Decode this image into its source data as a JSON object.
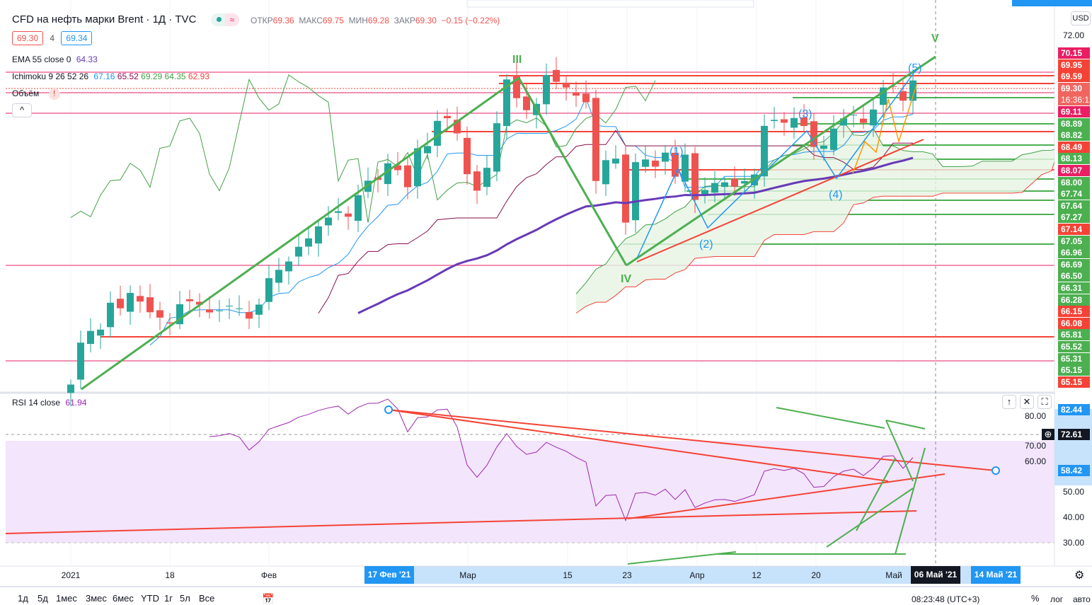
{
  "header": {
    "title": "CFD на нефть марки Brent · 1Д · TVC",
    "open_label": "ОТКР",
    "open": "69.36",
    "high_label": "МАКС",
    "high": "69.75",
    "low_label": "МИН",
    "low": "69.28",
    "close_label": "ЗАКР",
    "close": "69.30",
    "change": "−0.15 (−0.22%)",
    "bid": "69.30",
    "spread": "4",
    "ask": "69.34",
    "status_icon": "≈"
  },
  "indicators": {
    "ema_label": "EMA 55 close 0",
    "ema_value": "64.33",
    "ichimoku_label": "Ichimoku 9 26 52 26",
    "ichi_values": [
      "67.16",
      "65.52",
      "69.29",
      "64.35",
      "62.93"
    ],
    "volume_label": "Объём",
    "volume_warning": "!",
    "collapse": "^"
  },
  "rsi": {
    "label": "RSI 14 close",
    "value": "61.94",
    "ticks": [
      "80.00",
      "70.00",
      "60.00",
      "50.00",
      "40.00",
      "30.00"
    ],
    "labels": [
      {
        "value": "82.44",
        "color": "#2196f3"
      },
      {
        "value": "72.61",
        "color": "#131722"
      },
      {
        "value": "58.42",
        "color": "#2196f3"
      }
    ],
    "buttons": [
      "↑",
      "✕",
      "⛶"
    ]
  },
  "price_axis": {
    "currency": "USD",
    "top_tick": "72.00",
    "countdown": "16:36:1",
    "labels": [
      {
        "value": "70.15",
        "color": "#e91e63"
      },
      {
        "value": "69.95",
        "color": "#f44336"
      },
      {
        "value": "69.59",
        "color": "#f44336"
      },
      {
        "value": "69.30",
        "color": "#f0665f"
      },
      {
        "value": "69.11",
        "color": "#e91e63"
      },
      {
        "value": "68.89",
        "color": "#4caf50"
      },
      {
        "value": "68.82",
        "color": "#4caf50"
      },
      {
        "value": "68.49",
        "color": "#f44336"
      },
      {
        "value": "68.13",
        "color": "#4caf50"
      },
      {
        "value": "68.07",
        "color": "#e91e63"
      },
      {
        "value": "68.00",
        "color": "#4caf50"
      },
      {
        "value": "67.74",
        "color": "#4caf50"
      },
      {
        "value": "67.64",
        "color": "#4caf50"
      },
      {
        "value": "67.27",
        "color": "#4caf50"
      },
      {
        "value": "67.14",
        "color": "#f44336"
      },
      {
        "value": "67.05",
        "color": "#4caf50"
      },
      {
        "value": "66.96",
        "color": "#4caf50"
      },
      {
        "value": "66.69",
        "color": "#4caf50"
      },
      {
        "value": "66.50",
        "color": "#4caf50"
      },
      {
        "value": "66.31",
        "color": "#4caf50"
      },
      {
        "value": "66.28",
        "color": "#4caf50"
      },
      {
        "value": "66.15",
        "color": "#f44336"
      },
      {
        "value": "66.08",
        "color": "#f44336"
      },
      {
        "value": "65.81",
        "color": "#4caf50"
      },
      {
        "value": "65.52",
        "color": "#4caf50"
      },
      {
        "value": "65.31",
        "color": "#4caf50"
      },
      {
        "value": "65.15",
        "color": "#4caf50"
      },
      {
        "value": "65.15",
        "color": "#f44336"
      }
    ]
  },
  "time_axis": {
    "ticks": [
      "2021",
      "18",
      "Фев",
      "Мар",
      "15",
      "23",
      "Апр",
      "12",
      "20",
      "Май"
    ],
    "range_start": "17 Фев '21",
    "cursor": "06 Май '21",
    "range_end": "14 Май '21"
  },
  "waves": {
    "III": "III",
    "IV": "IV",
    "V": "V",
    "w1": "(1)",
    "w2": "(2)",
    "w3": "(3)",
    "w4": "(4)",
    "w5": "(5)"
  },
  "bottom_bar": {
    "ranges": [
      "1д",
      "5д",
      "1мес",
      "3мес",
      "6мес",
      "YTD",
      "1г",
      "5л",
      "Все"
    ],
    "time": "08:23:48 (UTC+3)",
    "percent": "%",
    "log": "лог",
    "auto": "авто"
  },
  "chart_data": {
    "type": "candlestick",
    "series": "Brent daily close",
    "closes": [
      51.09,
      53.6,
      54.3,
      54.38,
      55.99,
      55.66,
      56.58,
      56.06,
      55.42,
      55.1,
      54.75,
      55.9,
      56.08,
      55.88,
      55.41,
      55.53,
      55.81,
      55.65,
      55.04,
      55.88,
      57.46,
      57.96,
      58.46,
      59.34,
      59.84,
      60.56,
      61.09,
      61.47,
      61.14,
      62.43,
      63.3,
      63.35,
      64.34,
      63.93,
      62.91,
      65.24,
      65.37,
      66.88,
      67.04,
      66.13,
      63.69,
      62.7,
      64.07,
      66.74,
      69.36,
      68.24,
      67.52,
      67.9,
      69.63,
      69.22,
      68.88,
      68.39,
      68.0,
      63.28,
      64.53,
      64.62,
      60.79,
      64.41,
      64.57,
      64.14,
      64.98,
      63.54,
      64.86,
      62.15,
      62.74,
      63.16,
      63.2,
      62.95,
      63.28,
      63.67,
      66.58,
      66.94,
      66.77,
      67.05,
      66.57,
      65.32,
      65.4,
      66.42,
      67.03,
      67.25,
      66.76,
      67.56,
      68.88,
      68.96,
      68.09,
      69.3
    ],
    "ylim": [
      50.5,
      72.5
    ],
    "rsi_ylim": [
      25,
      85
    ]
  }
}
